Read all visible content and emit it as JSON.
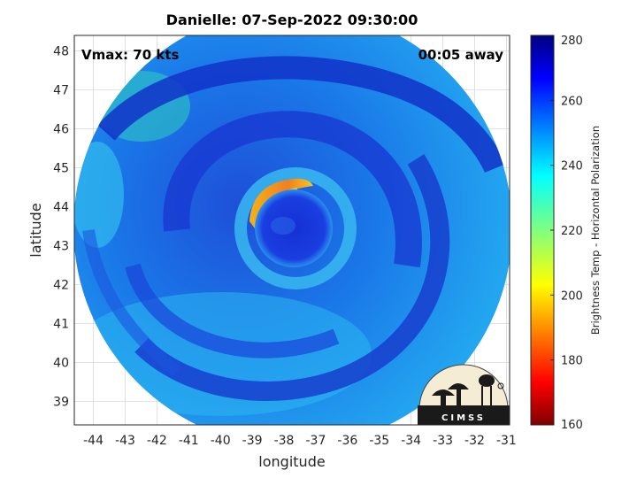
{
  "chart_data": {
    "type": "heatmap",
    "title": "Danielle: 07-Sep-2022 09:30:00",
    "xlabel": "longitude",
    "ylabel": "latitude",
    "xlim": [
      -44.6,
      -30.9
    ],
    "ylim": [
      38.4,
      48.4
    ],
    "xticks": [
      -44,
      -43,
      -42,
      -41,
      -40,
      -39,
      -38,
      -37,
      -36,
      -35,
      -34,
      -33,
      -32,
      -31
    ],
    "yticks": [
      39,
      40,
      41,
      42,
      43,
      44,
      45,
      46,
      47,
      48
    ],
    "grid": true,
    "annotations": {
      "top_left": "Vmax: 70 kts",
      "top_right": "00:05 away"
    },
    "storm_center": {
      "lon": -38.1,
      "lat": 43.4
    },
    "eyewall_warm_arc_peak": {
      "lon": -38.2,
      "lat": 44.6,
      "value": 198
    },
    "colorbar": {
      "label": "Brightness Temp - Horizontal Polarization",
      "range": [
        160,
        280
      ],
      "ticks": [
        160,
        180,
        200,
        220,
        240,
        260,
        280
      ],
      "colormap": "jet"
    },
    "logo": "CIMSS"
  },
  "colors": {
    "background_disk": "#1f7fe6",
    "rainband": "#1030c0",
    "eye": "#1a2fd0",
    "warm_arc": "#f0a020"
  }
}
